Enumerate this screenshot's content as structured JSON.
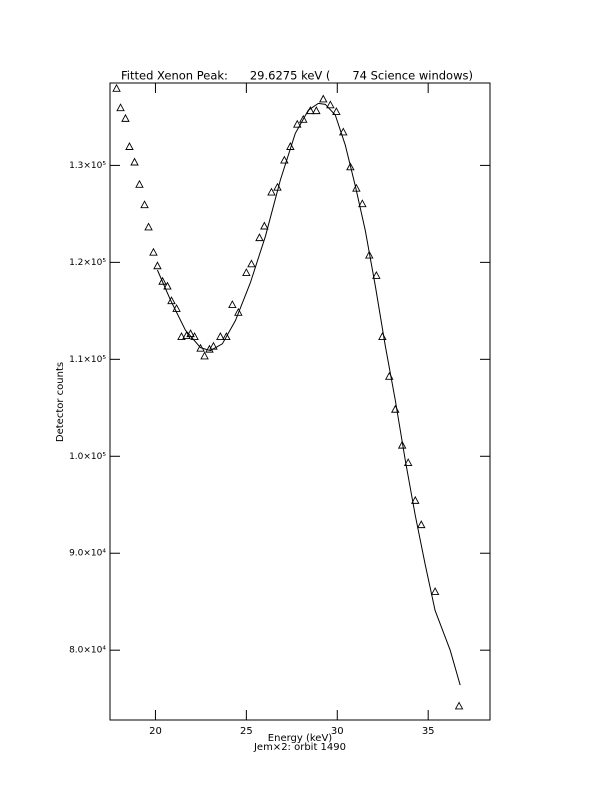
{
  "chart_data": {
    "type": "scatter",
    "title": "Fitted Xenon Peak:      29.6275 keV (      74 Science windows)",
    "subtitle": "Jem×2: orbit 1490",
    "x_label": "Energy (keV)",
    "y_label": "Detector counts",
    "xlim": [
      17.5,
      38.4
    ],
    "ylim": [
      72800,
      138500
    ],
    "xticks": [
      20,
      25,
      30,
      35
    ],
    "yticks": [
      {
        "value": 80000,
        "label": "8.0×10⁴"
      },
      {
        "value": 90000,
        "label": "9.0×10⁴"
      },
      {
        "value": 100000,
        "label": "1.0×10⁵"
      },
      {
        "value": 110000,
        "label": "1.1×10⁵"
      },
      {
        "value": 120000,
        "label": "1.2×10⁵"
      },
      {
        "value": 130000,
        "label": "1.3×10⁵"
      }
    ],
    "series": [
      {
        "mode": "markers",
        "marker": "triangle",
        "color": "#000000",
        "x": [
          17.86,
          18.08,
          18.35,
          18.57,
          18.85,
          19.12,
          19.4,
          19.62,
          19.89,
          20.11,
          20.39,
          20.66,
          20.88,
          21.16,
          21.43,
          21.71,
          21.93,
          22.15,
          22.48,
          22.7,
          22.97,
          23.19,
          23.57,
          23.9,
          24.23,
          24.56,
          25.0,
          25.28,
          25.72,
          25.99,
          26.38,
          26.71,
          27.09,
          27.42,
          27.8,
          28.13,
          28.52,
          28.85,
          29.23,
          29.62,
          29.95,
          30.33,
          30.72,
          31.05,
          31.38,
          31.76,
          32.15,
          32.48,
          32.86,
          33.19,
          33.57,
          33.9,
          34.29,
          34.62,
          35.38,
          36.7
        ],
        "values": [
          137900,
          135900,
          134800,
          131900,
          130300,
          128000,
          125900,
          123600,
          121000,
          119600,
          118000,
          117500,
          116000,
          115200,
          112300,
          112400,
          112600,
          112300,
          111100,
          110300,
          111000,
          111300,
          112300,
          112300,
          115600,
          114800,
          118900,
          119800,
          122500,
          123700,
          127200,
          127700,
          130500,
          131900,
          134200,
          134700,
          135600,
          135600,
          136800,
          136200,
          135500,
          133400,
          129800,
          127600,
          126000,
          120700,
          118600,
          112300,
          108200,
          104800,
          101100,
          99300,
          95400,
          92900,
          86000,
          74200
        ]
      },
      {
        "mode": "line",
        "color": "#000000",
        "x": [
          20.11,
          20.83,
          21.65,
          22.48,
          23.02,
          23.68,
          24.4,
          25.22,
          26.05,
          26.87,
          27.69,
          28.41,
          28.96,
          29.34,
          29.89,
          30.44,
          30.99,
          31.54,
          32.09,
          32.64,
          33.19,
          33.74,
          34.29,
          34.84,
          35.38,
          36.21,
          36.76
        ],
        "values": [
          119200,
          116100,
          113000,
          111200,
          110900,
          111600,
          114000,
          117900,
          122700,
          128500,
          133300,
          135700,
          136400,
          136300,
          135200,
          132100,
          127900,
          123300,
          117600,
          111400,
          105800,
          99600,
          93900,
          88800,
          84100,
          80000,
          76400
        ]
      }
    ]
  }
}
